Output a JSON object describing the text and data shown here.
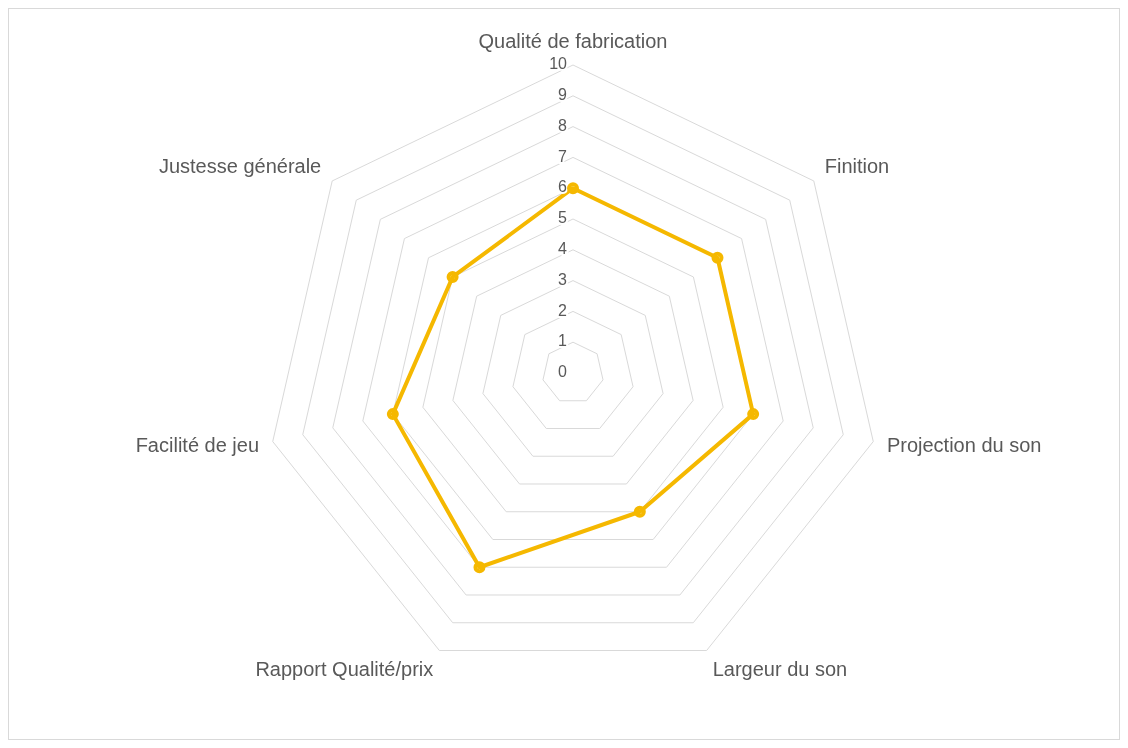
{
  "chart_data": {
    "type": "radar",
    "categories": [
      "Qualité de fabrication",
      "Finition",
      "Projection du son",
      "Largeur du son",
      "Rapport Qualité/prix",
      "Facilité de jeu",
      "Justesse générale"
    ],
    "series": [
      {
        "color": "#f5b800",
        "values": [
          6,
          6,
          6,
          5,
          7,
          6,
          5
        ]
      }
    ],
    "ylim": [
      0,
      10
    ],
    "yticks": [
      0,
      1,
      2,
      3,
      4,
      5,
      6,
      7,
      8,
      9,
      10
    ],
    "grid": true,
    "marker": "circle"
  }
}
